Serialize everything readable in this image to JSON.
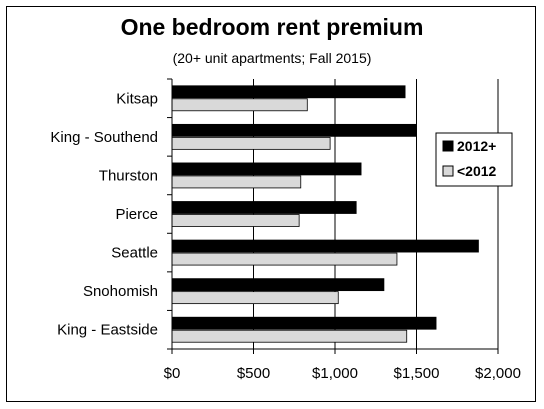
{
  "chart_data": {
    "type": "bar",
    "orientation": "horizontal",
    "title": "One bedroom rent premium",
    "subtitle": "(20+ unit apartments; Fall 2015)",
    "xlabel": "",
    "ylabel": "",
    "categories": [
      "Kitsap",
      "King - Southend",
      "Thurston",
      "Pierce",
      "Seattle",
      "Snohomish",
      "King - Eastside"
    ],
    "series": [
      {
        "name": "2012+",
        "color": "#000000",
        "values": [
          1430,
          1500,
          1160,
          1130,
          1880,
          1300,
          1620
        ]
      },
      {
        "name": "<2012",
        "color": "#d9d9d9",
        "values": [
          830,
          970,
          790,
          780,
          1380,
          1020,
          1440
        ]
      }
    ],
    "xlim": [
      0,
      2000
    ],
    "x_ticks": [
      0,
      500,
      1000,
      1500,
      2000
    ],
    "x_tick_labels": [
      "$0",
      "$500",
      "$1,000",
      "$1,500",
      "$2,000"
    ],
    "grid": "vertical",
    "legend_position": "right"
  }
}
